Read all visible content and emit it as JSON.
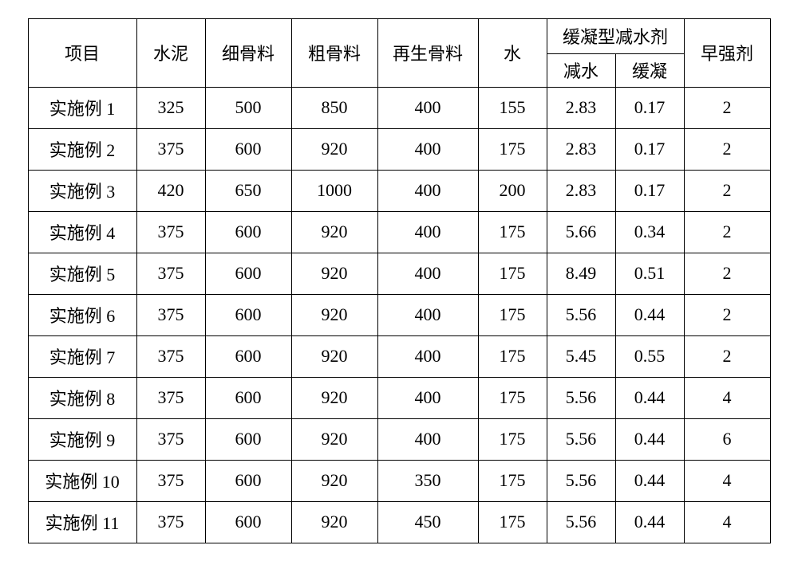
{
  "table": {
    "headers": {
      "project": "项目",
      "cement": "水泥",
      "fine_aggregate": "细骨料",
      "coarse_aggregate": "粗骨料",
      "recycled_aggregate": "再生骨料",
      "water": "水",
      "retarding_reducer": "缓凝型减水剂",
      "reduce": "减水",
      "retard": "缓凝",
      "early_strength": "早强剂"
    },
    "rows": [
      {
        "project": "实施例 1",
        "cement": "325",
        "fine": "500",
        "coarse": "850",
        "recycled": "400",
        "water": "155",
        "reduce": "2.83",
        "retard": "0.17",
        "early": "2"
      },
      {
        "project": "实施例 2",
        "cement": "375",
        "fine": "600",
        "coarse": "920",
        "recycled": "400",
        "water": "175",
        "reduce": "2.83",
        "retard": "0.17",
        "early": "2"
      },
      {
        "project": "实施例 3",
        "cement": "420",
        "fine": "650",
        "coarse": "1000",
        "recycled": "400",
        "water": "200",
        "reduce": "2.83",
        "retard": "0.17",
        "early": "2"
      },
      {
        "project": "实施例 4",
        "cement": "375",
        "fine": "600",
        "coarse": "920",
        "recycled": "400",
        "water": "175",
        "reduce": "5.66",
        "retard": "0.34",
        "early": "2"
      },
      {
        "project": "实施例 5",
        "cement": "375",
        "fine": "600",
        "coarse": "920",
        "recycled": "400",
        "water": "175",
        "reduce": "8.49",
        "retard": "0.51",
        "early": "2"
      },
      {
        "project": "实施例 6",
        "cement": "375",
        "fine": "600",
        "coarse": "920",
        "recycled": "400",
        "water": "175",
        "reduce": "5.56",
        "retard": "0.44",
        "early": "2"
      },
      {
        "project": "实施例 7",
        "cement": "375",
        "fine": "600",
        "coarse": "920",
        "recycled": "400",
        "water": "175",
        "reduce": "5.45",
        "retard": "0.55",
        "early": "2"
      },
      {
        "project": "实施例 8",
        "cement": "375",
        "fine": "600",
        "coarse": "920",
        "recycled": "400",
        "water": "175",
        "reduce": "5.56",
        "retard": "0.44",
        "early": "4"
      },
      {
        "project": "实施例 9",
        "cement": "375",
        "fine": "600",
        "coarse": "920",
        "recycled": "400",
        "water": "175",
        "reduce": "5.56",
        "retard": "0.44",
        "early": "6"
      },
      {
        "project": "实施例 10",
        "cement": "375",
        "fine": "600",
        "coarse": "920",
        "recycled": "350",
        "water": "175",
        "reduce": "5.56",
        "retard": "0.44",
        "early": "4"
      },
      {
        "project": "实施例 11",
        "cement": "375",
        "fine": "600",
        "coarse": "920",
        "recycled": "450",
        "water": "175",
        "reduce": "5.56",
        "retard": "0.44",
        "early": "4"
      }
    ],
    "border_color": "#000000",
    "background_color": "#ffffff",
    "font_size": 22,
    "cell_text_color": "#000000"
  }
}
